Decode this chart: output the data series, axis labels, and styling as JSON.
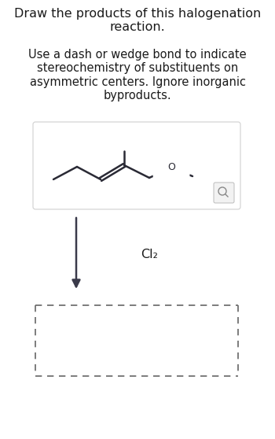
{
  "title_text": "Draw the products of this halogenation\nreaction.",
  "subtitle_text": "Use a dash or wedge bond to indicate\nstereochemistry of substituents on\nasymmetric centers. Ignore inorganic\nbyproducts.",
  "reagent_text": "Cl₂",
  "background_color": "#ffffff",
  "molecule_box_edge_color": "#d0d0d0",
  "bond_color": "#2a2a35",
  "text_color": "#1a1a1a",
  "arrow_color": "#3a3a4a",
  "dashed_box_color": "#666666",
  "title_fontsize": 11.5,
  "subtitle_fontsize": 10.5,
  "reagent_fontsize": 11.5
}
